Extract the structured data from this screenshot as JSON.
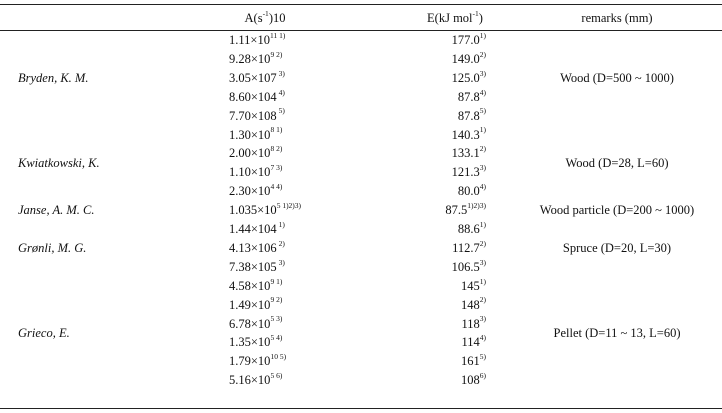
{
  "header": {
    "colA_main": "A(s",
    "colA_sup": "-1",
    "colA_tail": ")10",
    "colE_main": "E(kJ mol",
    "colE_sup": "-1",
    "colE_tail": ")",
    "colR": "remarks (mm)"
  },
  "groups": [
    {
      "author": "Bryden, K. M.",
      "remark": "Wood (D=500 ~ 1000)",
      "rows": [
        {
          "a": "1.11×10",
          "asup": "11 1)",
          "e": "177.0",
          "esup": "1)"
        },
        {
          "a": "9.28×10",
          "asup": "9 2)",
          "e": "149.0",
          "esup": "2)"
        },
        {
          "a": "3.05×107",
          "asup": " 3)",
          "e": "125.0",
          "esup": "3)"
        },
        {
          "a": "8.60×104",
          "asup": " 4)",
          "e": "87.8",
          "esup": "4)"
        },
        {
          "a": "7.70×108",
          "asup": " 5)",
          "e": "87.8",
          "esup": "5)"
        }
      ]
    },
    {
      "author": "Kwiatkowski, K.",
      "remark": "Wood (D=28, L=60)",
      "rows": [
        {
          "a": "1.30×10",
          "asup": "8 1)",
          "e": "140.3",
          "esup": "1)"
        },
        {
          "a": "2.00×10",
          "asup": "8 2)",
          "e": "133.1",
          "esup": "2)"
        },
        {
          "a": "1.10×10",
          "asup": "7 3)",
          "e": "121.3",
          "esup": "3)"
        },
        {
          "a": "2.30×10",
          "asup": "4 4)",
          "e": "80.0",
          "esup": "4)"
        }
      ]
    },
    {
      "author": "Janse, A. M. C.",
      "remark": "Wood particle (D=200 ~ 1000)",
      "rows": [
        {
          "a": "1.035×10",
          "asup": "5 1)2)3)",
          "e": "87.5",
          "esup": "1)2)3)"
        }
      ]
    },
    {
      "author": "Grønli, M. G.",
      "remark": "Spruce (D=20, L=30)",
      "rows": [
        {
          "a": "1.44×104",
          "asup": " 1)",
          "e": "88.6",
          "esup": "1)"
        },
        {
          "a": "4.13×106",
          "asup": " 2)",
          "e": "112.7",
          "esup": "2)"
        },
        {
          "a": "7.38×105",
          "asup": " 3)",
          "e": "106.5",
          "esup": "3)"
        }
      ]
    },
    {
      "author": "Grieco, E.",
      "remark": "Pellet (D=11 ~ 13, L=60)",
      "rows": [
        {
          "a": "4.58×10",
          "asup": "9 1)",
          "e": "145",
          "esup": "1)"
        },
        {
          "a": "1.49×10",
          "asup": "9 2)",
          "e": "148",
          "esup": "2)"
        },
        {
          "a": "6.78×10",
          "asup": "5 3)",
          "e": "118",
          "esup": "3)"
        },
        {
          "a": "1.35×10",
          "asup": "5 4)",
          "e": "114",
          "esup": "4)"
        },
        {
          "a": "1.79×10",
          "asup": "10 5)",
          "e": "161",
          "esup": "5)"
        },
        {
          "a": "5.16×10",
          "asup": "5 6)",
          "e": "108",
          "esup": "6)"
        }
      ]
    }
  ]
}
